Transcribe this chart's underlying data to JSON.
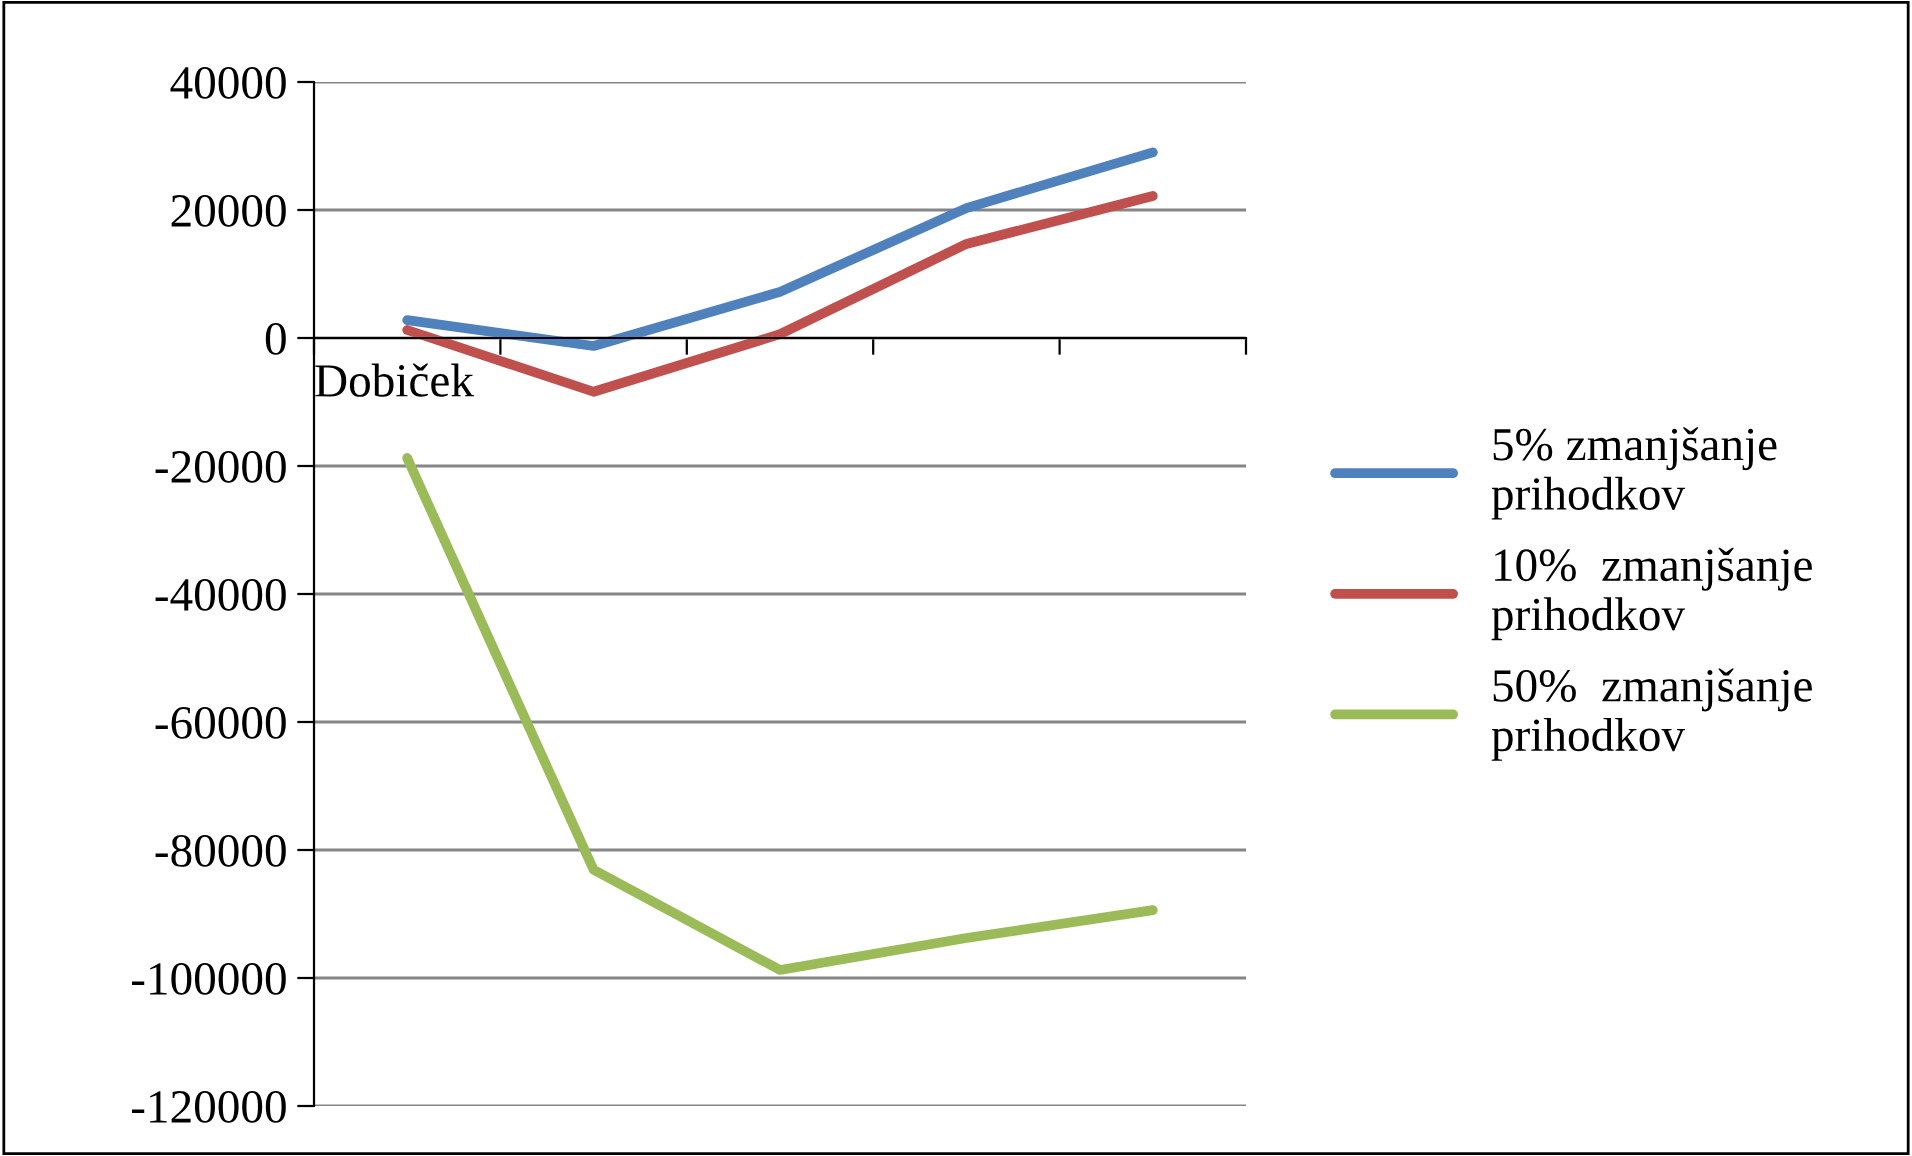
{
  "chart_data": {
    "type": "line",
    "categories": [
      null,
      null,
      null,
      null,
      null
    ],
    "series": [
      {
        "name": "5% zmanjšanje prihodkov",
        "color": "#4f81bd",
        "values": [
          2800,
          -1250,
          7200,
          20300,
          29000
        ]
      },
      {
        "name": "10%  zmanjšanje prihodkov",
        "color": "#c0504d",
        "values": [
          1250,
          -8400,
          600,
          14700,
          22200
        ]
      },
      {
        "name": "50%  zmanjšanje prihodkov",
        "color": "#9bbb59",
        "values": [
          -18750,
          -83100,
          -98750,
          -93750,
          -89400
        ]
      }
    ],
    "ylim": [
      -120000,
      40000
    ],
    "yticks": [
      -120000,
      -100000,
      -80000,
      -60000,
      -40000,
      -20000,
      0,
      20000,
      40000
    ],
    "grid": "y",
    "legend": "right",
    "marker": "none",
    "line_style": "solid",
    "annotations": [
      "Dobiček"
    ]
  }
}
